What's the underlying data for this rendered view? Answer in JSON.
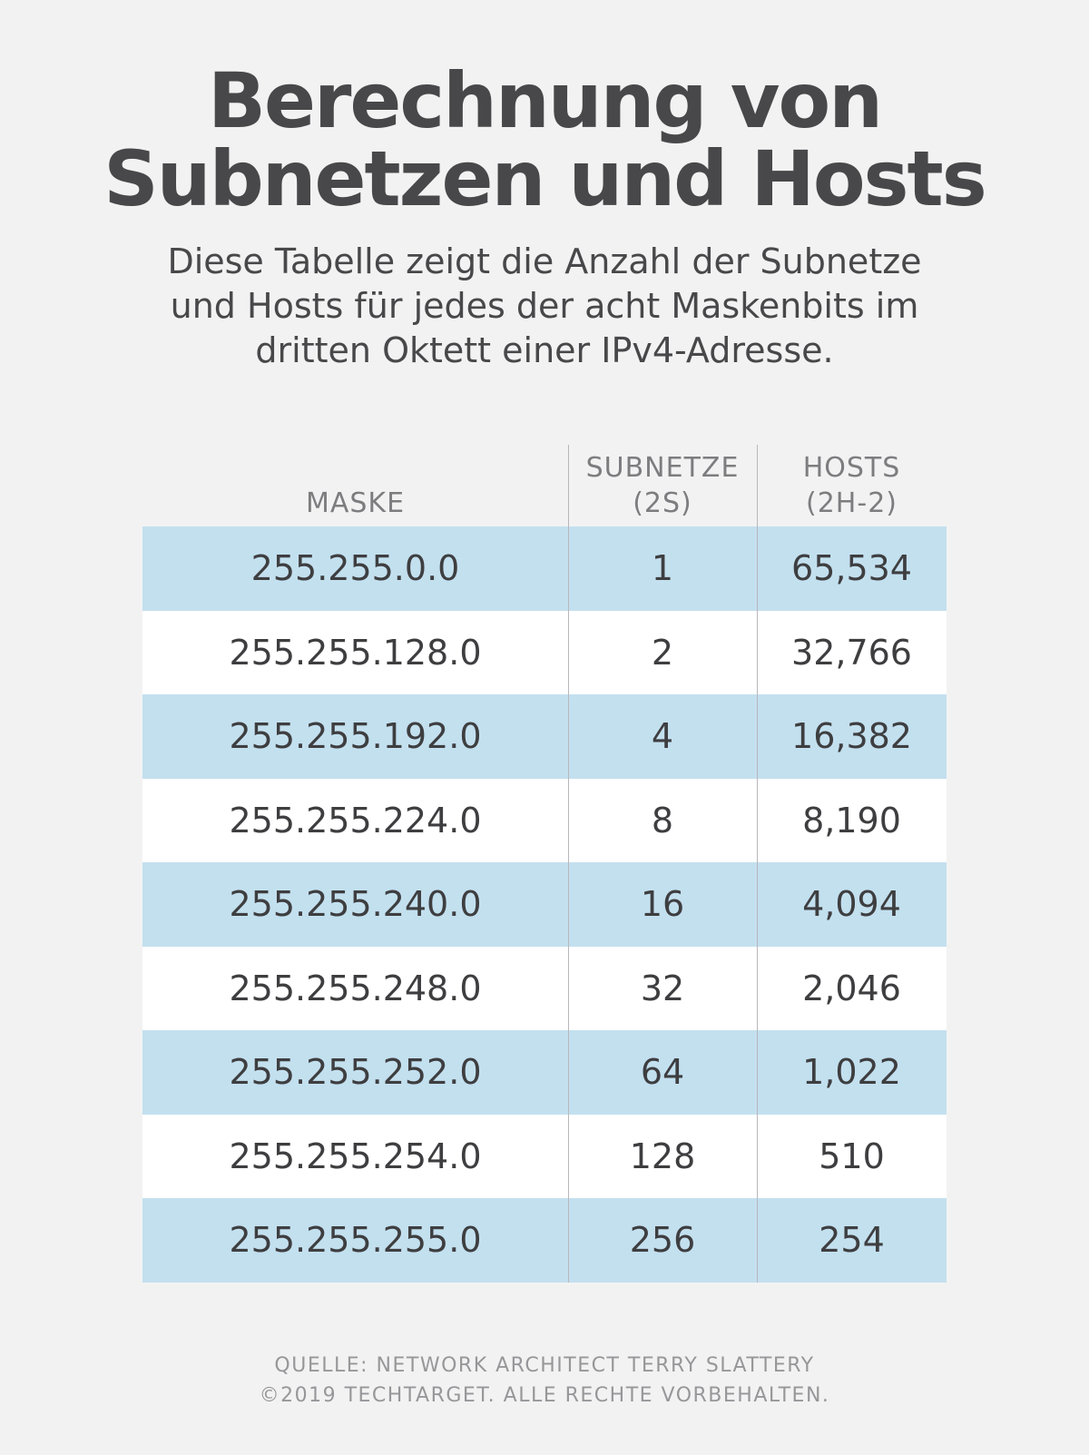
{
  "title": {
    "line1": "Berechnung von",
    "line2": "Subnetzen und Hosts"
  },
  "subtitle": {
    "line1": "Diese Tabelle zeigt die Anzahl der Subnetze",
    "line2": "und Hosts für jedes der acht Maskenbits im",
    "line3": "dritten Oktett einer IPv4-Adresse."
  },
  "table": {
    "headers": {
      "mask": "MASKE",
      "subnets": "SUBNETZE",
      "subnets_formula": "(2S)",
      "hosts": "HOSTS",
      "hosts_formula": "(2H-2)"
    },
    "rows": [
      {
        "mask": "255.255.0.0",
        "subnets": "1",
        "hosts": "65,534"
      },
      {
        "mask": "255.255.128.0",
        "subnets": "2",
        "hosts": "32,766"
      },
      {
        "mask": "255.255.192.0",
        "subnets": "4",
        "hosts": "16,382"
      },
      {
        "mask": "255.255.224.0",
        "subnets": "8",
        "hosts": "8,190"
      },
      {
        "mask": "255.255.240.0",
        "subnets": "16",
        "hosts": "4,094"
      },
      {
        "mask": "255.255.248.0",
        "subnets": "32",
        "hosts": "2,046"
      },
      {
        "mask": "255.255.252.0",
        "subnets": "64",
        "hosts": "1,022"
      },
      {
        "mask": "255.255.254.0",
        "subnets": "128",
        "hosts": "510"
      },
      {
        "mask": "255.255.255.0",
        "subnets": "256",
        "hosts": "254"
      }
    ]
  },
  "footer": {
    "source": "QUELLE: NETWORK ARCHITECT TERRY SLATTERY",
    "copyright": "©2019 TECHTARGET. ALLE RECHTE VORBEHALTEN."
  },
  "colors": {
    "background": "#f2f2f2",
    "row_alt": "#c3e0ef",
    "row_plain": "#ffffff",
    "text": "#444446"
  }
}
